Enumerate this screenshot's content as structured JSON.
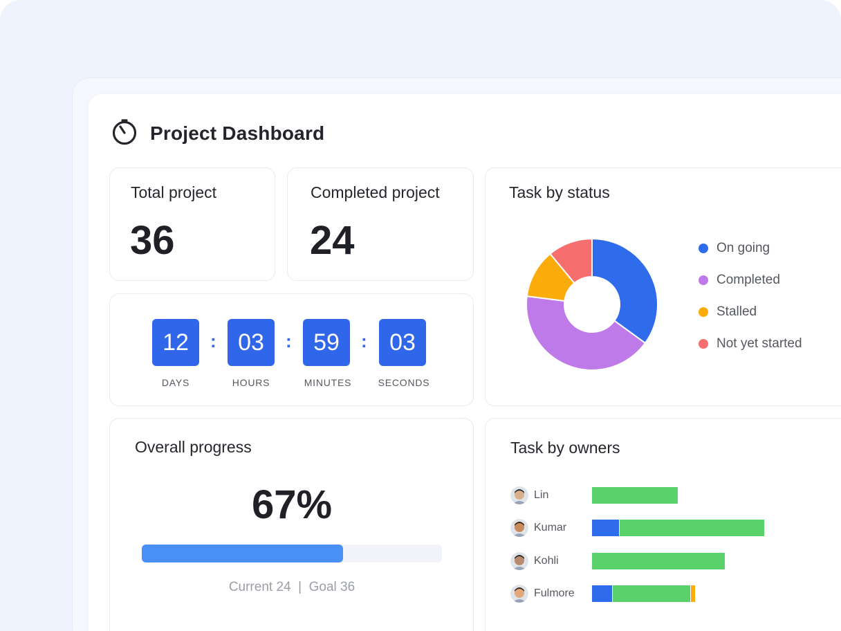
{
  "header": {
    "title": "Project Dashboard",
    "icon": "stopwatch-icon"
  },
  "stats": {
    "total_label": "Total project",
    "total_value": "36",
    "completed_label": "Completed project",
    "completed_value": "24"
  },
  "countdown": {
    "days": "12",
    "days_label": "DAYS",
    "hours": "03",
    "hours_label": "HOURS",
    "minutes": "59",
    "minutes_label": "MINUTES",
    "seconds": "03",
    "seconds_label": "SECONDS",
    "separator": ":"
  },
  "task_status": {
    "title": "Task by status",
    "items": [
      {
        "label": "On going",
        "color": "#2f6ceb",
        "share": 0.35
      },
      {
        "label": "Completed",
        "color": "#bd7ae8",
        "share": 0.42
      },
      {
        "label": "Stalled",
        "color": "#fbab0a",
        "share": 0.12
      },
      {
        "label": "Not yet started",
        "color": "#f76e6e",
        "share": 0.11
      }
    ]
  },
  "progress": {
    "title": "Overall progress",
    "percent_label": "67%",
    "percent": 67,
    "caption": "Current 24  |  Goal 36"
  },
  "owners": {
    "title": "Task by owners",
    "colors": {
      "blue": "#2f6ceb",
      "green": "#5ad16a",
      "orange": "#fbab0a"
    },
    "rows": [
      {
        "name": "Lin",
        "segments": [
          {
            "color": "green",
            "value": 5
          }
        ]
      },
      {
        "name": "Kumar",
        "segments": [
          {
            "color": "blue",
            "value": 1.6
          },
          {
            "color": "green",
            "value": 8.4
          }
        ]
      },
      {
        "name": "Kohli",
        "segments": [
          {
            "color": "green",
            "value": 7.7
          }
        ]
      },
      {
        "name": "Fulmore",
        "segments": [
          {
            "color": "blue",
            "value": 1.2
          },
          {
            "color": "green",
            "value": 4.5
          },
          {
            "color": "orange",
            "value": 0.3
          }
        ]
      }
    ]
  }
}
